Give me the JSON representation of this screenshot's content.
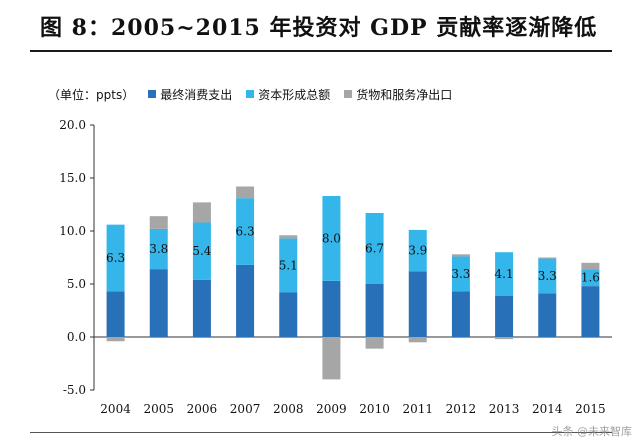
{
  "title": "图 8：2005~2015 年投资对 GDP 贡献率逐渐降低",
  "legend": {
    "unit": "（单位：ppts）",
    "items": [
      "最终消费支出",
      "资本形成总额",
      "货物和服务净出口"
    ]
  },
  "colors": {
    "consumption": "#2870b8",
    "capital": "#35b6ea",
    "net_export": "#a6a6a6"
  },
  "watermark": "头条 @未来智库",
  "chart_data": {
    "type": "bar",
    "stacked": true,
    "categories": [
      "2004",
      "2005",
      "2006",
      "2007",
      "2008",
      "2009",
      "2010",
      "2011",
      "2012",
      "2013",
      "2014",
      "2015"
    ],
    "series": [
      {
        "name": "最终消费支出",
        "values": [
          4.3,
          6.4,
          5.4,
          6.8,
          4.2,
          5.3,
          5.0,
          6.2,
          4.3,
          3.9,
          4.1,
          4.8
        ]
      },
      {
        "name": "资本形成总额",
        "values": [
          6.3,
          3.8,
          5.4,
          6.3,
          5.1,
          8.0,
          6.7,
          3.9,
          3.3,
          4.1,
          3.3,
          1.6
        ]
      },
      {
        "name": "货物和服务净出口",
        "values": [
          -0.4,
          1.2,
          1.9,
          1.1,
          0.3,
          -4.0,
          -1.1,
          -0.5,
          0.2,
          -0.2,
          0.1,
          0.6
        ]
      }
    ],
    "data_labels": [
      "6.3",
      "3.8",
      "5.4",
      "6.3",
      "5.1",
      "8.0",
      "6.7",
      "3.9",
      "3.3",
      "4.1",
      "3.3",
      "1.6"
    ],
    "yticks": [
      "20.0",
      "15.0",
      "10.0",
      "5.0",
      "0.0",
      "-5.0"
    ],
    "ylim": [
      -5,
      20
    ],
    "legend_position": "top-left",
    "grid": false
  }
}
